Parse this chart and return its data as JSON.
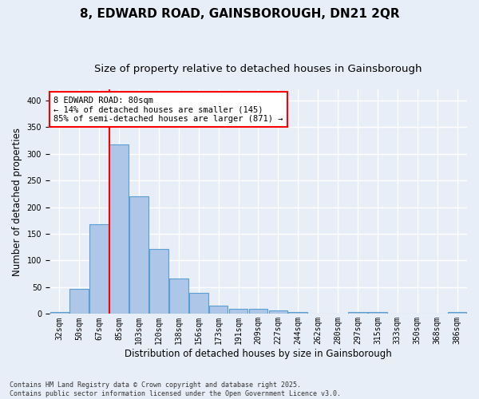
{
  "title1": "8, EDWARD ROAD, GAINSBOROUGH, DN21 2QR",
  "title2": "Size of property relative to detached houses in Gainsborough",
  "xlabel": "Distribution of detached houses by size in Gainsborough",
  "ylabel": "Number of detached properties",
  "categories": [
    "32sqm",
    "50sqm",
    "67sqm",
    "85sqm",
    "103sqm",
    "120sqm",
    "138sqm",
    "156sqm",
    "173sqm",
    "191sqm",
    "209sqm",
    "227sqm",
    "244sqm",
    "262sqm",
    "280sqm",
    "297sqm",
    "315sqm",
    "333sqm",
    "350sqm",
    "368sqm",
    "386sqm"
  ],
  "values": [
    4,
    47,
    168,
    317,
    220,
    122,
    67,
    40,
    16,
    10,
    9,
    6,
    4,
    0,
    0,
    3,
    3,
    0,
    0,
    0,
    4
  ],
  "bar_color": "#aec6e8",
  "bar_edge_color": "#5a9fd4",
  "background_color": "#e8eef7",
  "grid_color": "#ffffff",
  "vline_x": 2.5,
  "vline_color": "red",
  "annotation_text": "8 EDWARD ROAD: 80sqm\n← 14% of detached houses are smaller (145)\n85% of semi-detached houses are larger (871) →",
  "annotation_box_color": "white",
  "annotation_box_edge": "red",
  "footnote": "Contains HM Land Registry data © Crown copyright and database right 2025.\nContains public sector information licensed under the Open Government Licence v3.0.",
  "ylim": [
    0,
    420
  ],
  "title1_fontsize": 11,
  "title2_fontsize": 9.5,
  "xlabel_fontsize": 8.5,
  "ylabel_fontsize": 8.5,
  "tick_fontsize": 7,
  "annot_fontsize": 7.5,
  "footnote_fontsize": 6
}
